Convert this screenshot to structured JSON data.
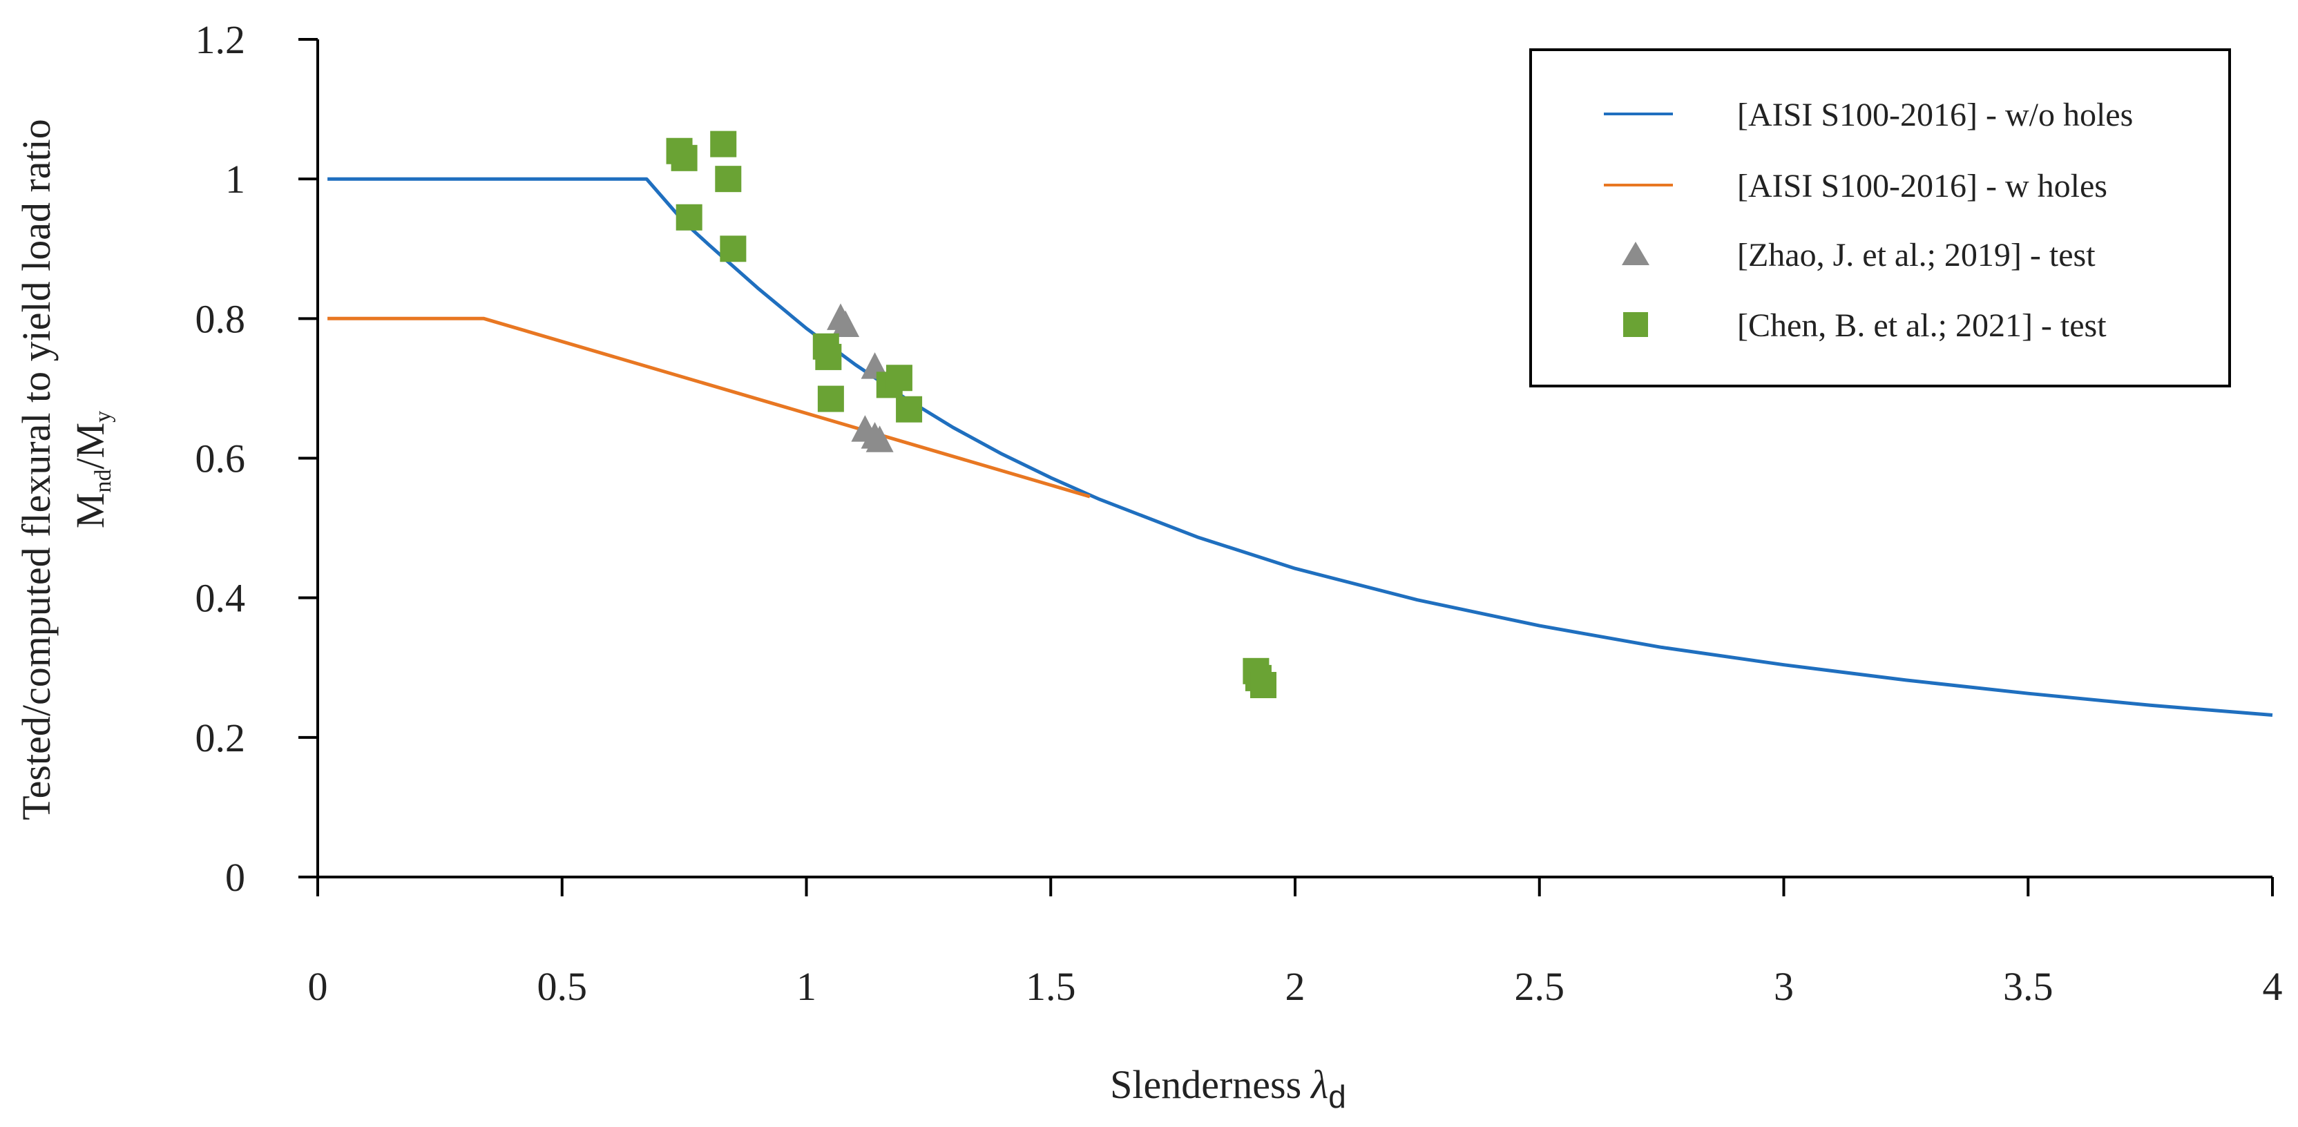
{
  "chart_data": {
    "type": "line+scatter",
    "xlabel": "Slenderness",
    "xlabel_symbol": "λ",
    "xlabel_subscript": "d",
    "ylabel_line1": "Tested/computed flexural to yield load ratio",
    "ylabel_line2_main": "M",
    "ylabel_line2_sub1": "nd",
    "ylabel_line2_sep": "/M",
    "ylabel_line2_sub2": "y",
    "xlim": [
      0,
      4
    ],
    "ylim": [
      0,
      1.2
    ],
    "x_ticks": [
      "0",
      "0.5",
      "1",
      "1.5",
      "2",
      "2.5",
      "3",
      "3.5",
      "4"
    ],
    "y_ticks": [
      "0",
      "0.2",
      "0.4",
      "0.6",
      "0.8",
      "1",
      "1.2"
    ],
    "grid": false,
    "legend_position": "top-right",
    "series": [
      {
        "name": "[AISI S100-2016] - w/o holes",
        "kind": "line",
        "color": "#1f6fbf",
        "x": [
          0.02,
          0.673,
          0.75,
          0.8,
          0.9,
          1.0,
          1.1,
          1.2,
          1.3,
          1.4,
          1.5,
          1.6,
          1.8,
          2.0,
          2.25,
          2.5,
          2.75,
          3.0,
          3.25,
          3.5,
          3.75,
          4.0
        ],
        "y": [
          1.0,
          1.0,
          0.938,
          0.906,
          0.844,
          0.786,
          0.734,
          0.687,
          0.644,
          0.606,
          0.572,
          0.541,
          0.487,
          0.442,
          0.397,
          0.36,
          0.329,
          0.304,
          0.282,
          0.263,
          0.246,
          0.232
        ]
      },
      {
        "name": "[AISI S100-2016] - w holes",
        "kind": "line",
        "color": "#e87722",
        "x": [
          0.02,
          0.34,
          1.58
        ],
        "y": [
          0.8,
          0.8,
          0.545
        ]
      },
      {
        "name": "[Zhao, J. et al.; 2019] - test",
        "kind": "scatter",
        "marker": "triangle",
        "color": "#8c8c8c",
        "x": [
          1.07,
          1.08,
          1.14,
          1.12,
          1.14,
          1.15
        ],
        "y": [
          0.8,
          0.79,
          0.73,
          0.64,
          0.63,
          0.625
        ]
      },
      {
        "name": "[Chen, B. et al.; 2021] - test",
        "kind": "scatter",
        "marker": "square",
        "color": "#6aa334",
        "x": [
          0.74,
          0.75,
          0.76,
          0.83,
          0.84,
          0.85,
          1.04,
          1.045,
          1.05,
          1.17,
          1.19,
          1.21,
          1.92,
          1.925,
          1.935
        ],
        "y": [
          1.04,
          1.03,
          0.945,
          1.05,
          1.0,
          0.9,
          0.76,
          0.745,
          0.685,
          0.705,
          0.715,
          0.67,
          0.295,
          0.285,
          0.275
        ]
      }
    ]
  }
}
